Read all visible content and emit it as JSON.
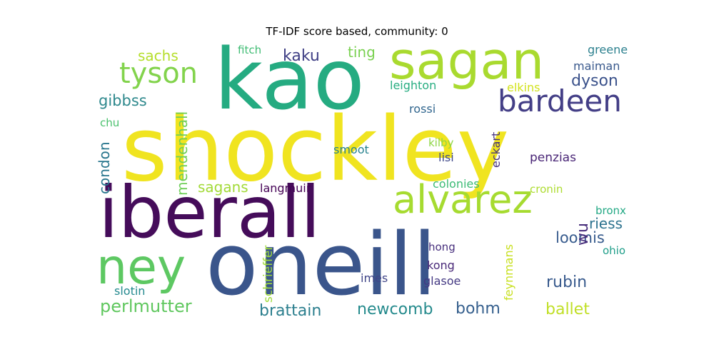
{
  "title": "TF-IDF score based, community: 0",
  "words": [
    {
      "text": "shockley",
      "color": "#f0e420"
    },
    {
      "text": "kao",
      "color": "#25ab81"
    },
    {
      "text": "sagan",
      "color": "#a9da2f"
    },
    {
      "text": "oneill",
      "color": "#3a558b"
    },
    {
      "text": "iberall",
      "color": "#450c5a"
    },
    {
      "text": "ney",
      "color": "#5dc862"
    },
    {
      "text": "alvarez",
      "color": "#a6db30"
    },
    {
      "text": "bardeen",
      "color": "#433e86"
    },
    {
      "text": "tyson",
      "color": "#82d34c"
    },
    {
      "text": "perlmutter",
      "color": "#5fc75e"
    },
    {
      "text": "brattain",
      "color": "#2c7f8e"
    },
    {
      "text": "newcomb",
      "color": "#248a8c"
    },
    {
      "text": "bohm",
      "color": "#355f8d"
    },
    {
      "text": "ballet",
      "color": "#c0df25"
    },
    {
      "text": "rubin",
      "color": "#37598c"
    },
    {
      "text": "loomis",
      "color": "#375b8d"
    },
    {
      "text": "riess",
      "color": "#2c728e"
    },
    {
      "text": "dyson",
      "color": "#3b528b"
    },
    {
      "text": "kaku",
      "color": "#3f3f85"
    },
    {
      "text": "ting",
      "color": "#7ad151"
    },
    {
      "text": "sachs",
      "color": "#b5de2b"
    },
    {
      "text": "gibbss",
      "color": "#2f898d"
    },
    {
      "text": "sagans",
      "color": "#a2da37"
    },
    {
      "text": "condon",
      "color": "#2a778e"
    },
    {
      "text": "mendenhall",
      "color": "#6ece58"
    },
    {
      "text": "schrieffer",
      "color": "#9fda3a"
    },
    {
      "text": "feynmans",
      "color": "#c8e020"
    },
    {
      "text": "wu",
      "color": "#472d7b"
    },
    {
      "text": "eckart",
      "color": "#46327e"
    },
    {
      "text": "greene",
      "color": "#2c808e"
    },
    {
      "text": "maiman",
      "color": "#38588c"
    },
    {
      "text": "leighton",
      "color": "#27ad81"
    },
    {
      "text": "elkins",
      "color": "#d2e21b"
    },
    {
      "text": "rossi",
      "color": "#31668e"
    },
    {
      "text": "smoot",
      "color": "#26828e"
    },
    {
      "text": "kilby",
      "color": "#8ed645"
    },
    {
      "text": "lisi",
      "color": "#3f4889"
    },
    {
      "text": "penzias",
      "color": "#482475"
    },
    {
      "text": "colonies",
      "color": "#3cbb75"
    },
    {
      "text": "cronin",
      "color": "#addc30"
    },
    {
      "text": "langmuir",
      "color": "#440154"
    },
    {
      "text": "fitch",
      "color": "#3fbc73"
    },
    {
      "text": "chu",
      "color": "#4ac16d"
    },
    {
      "text": "bronx",
      "color": "#22a884"
    },
    {
      "text": "ohio",
      "color": "#1f9e89"
    },
    {
      "text": "hong",
      "color": "#472f7d"
    },
    {
      "text": "kong",
      "color": "#482878"
    },
    {
      "text": "imes",
      "color": "#404588"
    },
    {
      "text": "glasoe",
      "color": "#443983"
    },
    {
      "text": "slotin",
      "color": "#23898e"
    }
  ]
}
